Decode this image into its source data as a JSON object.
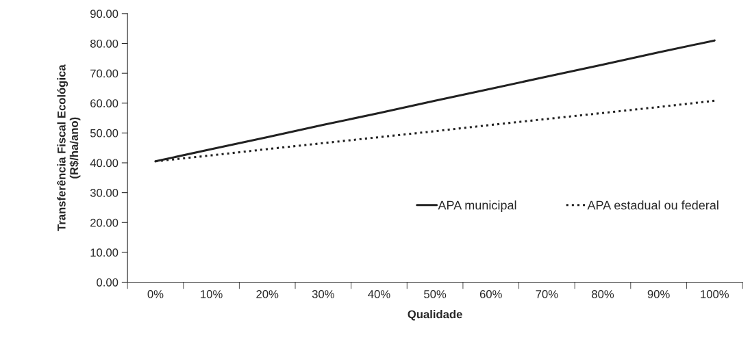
{
  "chart_data": {
    "type": "line",
    "xlabel": "Qualidade",
    "ylabel": "Transferência Fiscal Ecológica\n(R$/ha/ano)",
    "categories": [
      "0%",
      "10%",
      "20%",
      "30%",
      "40%",
      "50%",
      "60%",
      "70%",
      "80%",
      "90%",
      "100%"
    ],
    "series": [
      {
        "name": "APA municipal",
        "color": "#222222",
        "line_style": "solid",
        "values": [
          40.5,
          44.6,
          48.6,
          52.7,
          56.7,
          60.8,
          64.8,
          68.9,
          72.9,
          77.0,
          81.0
        ]
      },
      {
        "name": "APA estadual ou federal",
        "color": "#222222",
        "line_style": "dotted",
        "values": [
          40.5,
          42.5,
          44.6,
          46.6,
          48.6,
          50.6,
          52.7,
          54.7,
          56.7,
          58.7,
          60.8
        ]
      }
    ],
    "ylim": [
      0,
      90
    ],
    "yticks": [
      {
        "value": 0,
        "label": "0.00"
      },
      {
        "value": 10,
        "label": "10.00"
      },
      {
        "value": 20,
        "label": "20.00"
      },
      {
        "value": 30,
        "label": "30.00"
      },
      {
        "value": 40,
        "label": "40.00"
      },
      {
        "value": 50,
        "label": "50.00"
      },
      {
        "value": 60,
        "label": "60.00"
      },
      {
        "value": 70,
        "label": "70.00"
      },
      {
        "value": 80,
        "label": "80.00"
      },
      {
        "value": 90,
        "label": "90.00"
      }
    ],
    "grid": false,
    "legend": "bottom right",
    "marker": "none"
  }
}
